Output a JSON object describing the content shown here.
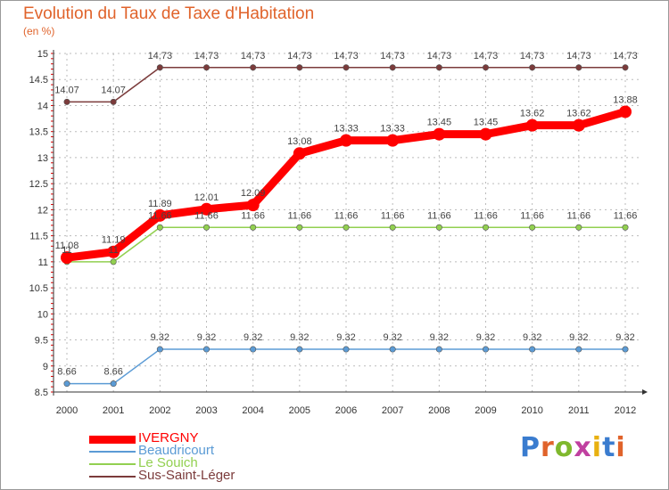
{
  "title": "Evolution du Taux de Taxe d'Habitation",
  "unit_label": "(en %)",
  "brand": {
    "letters": [
      "P",
      "r",
      "o",
      "x",
      "i",
      "t",
      "i"
    ],
    "colors": [
      "#3a7ccf",
      "#e0632b",
      "#7fb82d",
      "#c040a0",
      "#e8b010",
      "#3a7ccf",
      "#e0632b"
    ]
  },
  "chart_data": {
    "type": "line",
    "title": "Evolution du Taux de Taxe d'Habitation",
    "ylabel": "(en %)",
    "xlabel": "",
    "x": [
      2000,
      2001,
      2002,
      2003,
      2004,
      2005,
      2006,
      2007,
      2008,
      2009,
      2010,
      2011,
      2012
    ],
    "ylim": [
      8.5,
      15
    ],
    "yticks": [
      "8.5",
      "9",
      "9.5",
      "10",
      "10.5",
      "11",
      "11.5",
      "12",
      "12.5",
      "13",
      "13.5",
      "14",
      "14.5",
      "15"
    ],
    "grid": true,
    "legend_position": "bottom-left",
    "series": [
      {
        "name": "IVERGNY",
        "color": "#ff0000",
        "values": [
          11.08,
          11.19,
          11.89,
          12.01,
          12.09,
          13.08,
          13.33,
          13.33,
          13.45,
          13.45,
          13.62,
          13.62,
          13.88
        ],
        "labels": [
          "11.08",
          "11.19",
          "11.89",
          "12.01",
          "12.09",
          "13.08",
          "13.33",
          "13.33",
          "13.45",
          "13.45",
          "13.62",
          "13.62",
          "13.88"
        ]
      },
      {
        "name": "Beaudricourt",
        "color": "#5b9bd5",
        "values": [
          8.66,
          8.66,
          9.32,
          9.32,
          9.32,
          9.32,
          9.32,
          9.32,
          9.32,
          9.32,
          9.32,
          9.32,
          9.32
        ],
        "labels": [
          "8.66",
          "8.66",
          "9.32",
          "9.32",
          "9.32",
          "9.32",
          "9.32",
          "9.32",
          "9.32",
          "9.32",
          "9.32",
          "9.32",
          "9.32"
        ]
      },
      {
        "name": "Le Souich",
        "color": "#92d050",
        "values": [
          11,
          11,
          11.66,
          11.66,
          11.66,
          11.66,
          11.66,
          11.66,
          11.66,
          11.66,
          11.66,
          11.66,
          11.66
        ],
        "labels": [
          "11",
          "11",
          "11.66",
          "11.66",
          "11.66",
          "11.66",
          "11.66",
          "11.66",
          "11.66",
          "11.66",
          "11.66",
          "11.66",
          "11.66"
        ]
      },
      {
        "name": "Sus-Saint-Léger",
        "color": "#7b3b3b",
        "values": [
          14.07,
          14.07,
          14.73,
          14.73,
          14.73,
          14.73,
          14.73,
          14.73,
          14.73,
          14.73,
          14.73,
          14.73,
          14.73
        ],
        "labels": [
          "14.07",
          "14.07",
          "14.73",
          "14.73",
          "14.73",
          "14.73",
          "14.73",
          "14.73",
          "14.73",
          "14.73",
          "14.73",
          "14.73",
          "14.73"
        ]
      }
    ]
  }
}
